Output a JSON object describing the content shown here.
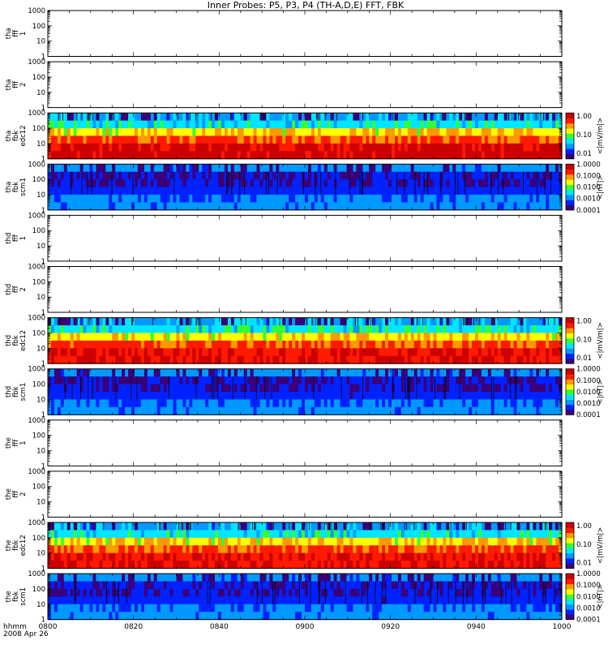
{
  "title": "Inner Probes: P5, P3, P4 (TH-A,D,E) FFT, FBK",
  "time_axis": {
    "ticks": [
      "0800",
      "0820",
      "0840",
      "0900",
      "0920",
      "0940",
      "1000"
    ],
    "label_line1": "hhmm",
    "label_line2": "2008 Apr 26"
  },
  "y_ticks": [
    "1000",
    "100",
    "10",
    "1"
  ],
  "colors": {
    "frame": "#000000",
    "colormap": [
      "#3a007a",
      "#0022ff",
      "#0099ff",
      "#00e6ff",
      "#33ff33",
      "#ffff00",
      "#ff9900",
      "#ff1a00",
      "#cc0000"
    ]
  },
  "chart_data": [
    {
      "type": "heatmap",
      "panel": "tha-fff-1",
      "ylabel": [
        "tha",
        "fff",
        "1"
      ],
      "yscale": "log",
      "ylim": [
        1,
        1000
      ],
      "status": "no data"
    },
    {
      "type": "heatmap",
      "panel": "tha-fff-2",
      "ylabel": [
        "tha",
        "fff",
        "2"
      ],
      "yscale": "log",
      "ylim": [
        1,
        1000
      ],
      "status": "no data"
    },
    {
      "type": "heatmap",
      "panel": "tha-fbk-edc12",
      "ylabel": [
        "tha",
        "fbk",
        "edc12"
      ],
      "yscale": "log",
      "ylim": [
        1,
        1000
      ],
      "colorbar": {
        "label": "<|mV/m|>",
        "ticks": [
          "1.00",
          "0.10",
          "0.01"
        ]
      },
      "bands_top_to_bottom": [
        0.03,
        0.05,
        0.2,
        0.5,
        1.0,
        1.2
      ]
    },
    {
      "type": "heatmap",
      "panel": "tha-fbk-scm1",
      "ylabel": [
        "tha",
        "fbk",
        "scm1"
      ],
      "yscale": "log",
      "ylim": [
        1,
        1000
      ],
      "colorbar": {
        "label": "<|nT|>",
        "ticks": [
          "1.0000",
          "0.1000",
          "0.0100",
          "0.0010",
          "0.0001"
        ]
      },
      "bands_top_to_bottom": [
        0.0012,
        0.0003,
        0.0003,
        0.0005,
        0.0009,
        0.0012
      ]
    },
    {
      "type": "heatmap",
      "panel": "thd-fff-1",
      "ylabel": [
        "thd",
        "fff",
        "1"
      ],
      "yscale": "log",
      "ylim": [
        1,
        1000
      ],
      "status": "no data"
    },
    {
      "type": "heatmap",
      "panel": "thd-fff-2",
      "ylabel": [
        "thd",
        "fff",
        "2"
      ],
      "yscale": "log",
      "ylim": [
        1,
        1000
      ],
      "status": "no data"
    },
    {
      "type": "heatmap",
      "panel": "thd-fbk-edc12",
      "ylabel": [
        "thd",
        "fbk",
        "edc12"
      ],
      "yscale": "log",
      "ylim": [
        1,
        1000
      ],
      "colorbar": {
        "label": "<|mV/m|>",
        "ticks": [
          "1.00",
          "0.10",
          "0.01"
        ]
      },
      "bands_top_to_bottom": [
        0.03,
        0.05,
        0.2,
        0.5,
        0.8,
        0.8
      ]
    },
    {
      "type": "heatmap",
      "panel": "thd-fbk-scm1",
      "ylabel": [
        "thd",
        "fbk",
        "scm1"
      ],
      "yscale": "log",
      "ylim": [
        1,
        1000
      ],
      "colorbar": {
        "label": "<|nT|>",
        "ticks": [
          "1.0000",
          "0.1000",
          "0.0100",
          "0.0010",
          "0.0001"
        ]
      },
      "bands_top_to_bottom": [
        0.0012,
        0.0003,
        0.0003,
        0.0005,
        0.0009,
        0.0012
      ]
    },
    {
      "type": "heatmap",
      "panel": "the-fff-1",
      "ylabel": [
        "the",
        "fff",
        "1"
      ],
      "yscale": "log",
      "ylim": [
        1,
        1000
      ],
      "status": "no data"
    },
    {
      "type": "heatmap",
      "panel": "the-fff-2",
      "ylabel": [
        "the",
        "fff",
        "2"
      ],
      "yscale": "log",
      "ylim": [
        1,
        1000
      ],
      "status": "no data"
    },
    {
      "type": "heatmap",
      "panel": "the-fbk-edc12",
      "ylabel": [
        "the",
        "fbk",
        "edc12"
      ],
      "yscale": "log",
      "ylim": [
        1,
        1000
      ],
      "colorbar": {
        "label": "<|mV/m|>",
        "ticks": [
          "1.00",
          "0.10",
          "0.01"
        ]
      },
      "bands_top_to_bottom": [
        0.03,
        0.05,
        0.2,
        0.5,
        0.8,
        0.8
      ]
    },
    {
      "type": "heatmap",
      "panel": "the-fbk-scm1",
      "ylabel": [
        "the",
        "fbk",
        "scm1"
      ],
      "yscale": "log",
      "ylim": [
        1,
        1000
      ],
      "colorbar": {
        "label": "<|nT|>",
        "ticks": [
          "1.0000",
          "0.1000",
          "0.0100",
          "0.0010",
          "0.0001"
        ]
      },
      "bands_top_to_bottom": [
        0.0012,
        0.0003,
        0.0003,
        0.0005,
        0.0009,
        0.0012
      ]
    }
  ]
}
